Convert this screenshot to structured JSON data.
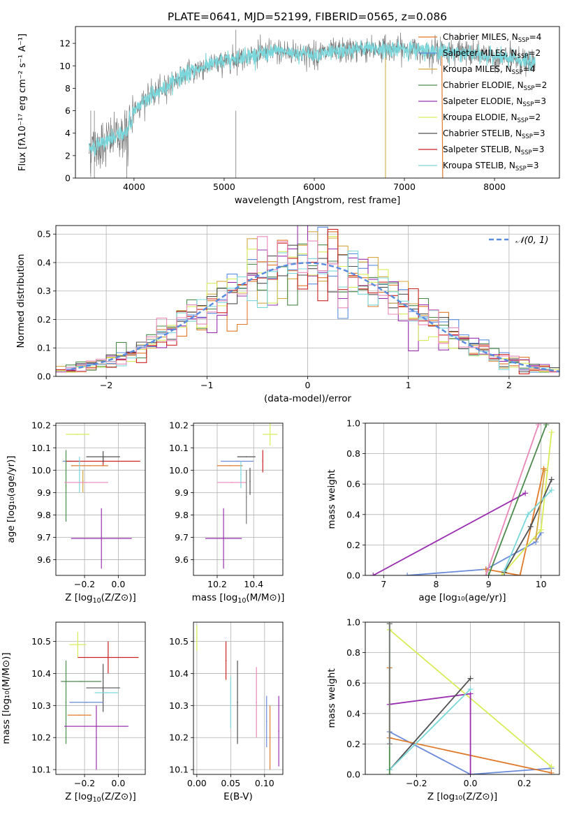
{
  "figure_title": "PLATE=0641, MJD=52199, FIBERID=0565, z=0.086",
  "colors": {
    "c1": "#d4a840",
    "c2": "#4c8a4c",
    "c3": "#9a30b0",
    "c4": "#d8ec5a",
    "c5": "#505050",
    "c6": "#cc2222",
    "c7": "#7ad8dc",
    "c8": "#e07a2a",
    "c9": "#6a8ad8",
    "c10": "#e888b8",
    "c11": "#777777",
    "c12": "#5a8de0"
  },
  "chart_data": [
    {
      "id": "spectrum",
      "type": "line",
      "xlabel": "wavelength [Angstrom, rest frame]",
      "ylabel": "Flux [fλ10⁻¹⁷ erg cm⁻² s⁻¹ A⁻¹]",
      "xlim": [
        3350,
        8720
      ],
      "ylim": [
        0,
        13.5
      ],
      "xticks": [
        4000,
        5000,
        6000,
        7000,
        8000
      ],
      "yticks": [
        0,
        2,
        4,
        6,
        8,
        10,
        12
      ],
      "legend_position": "top-right",
      "legend": [
        {
          "base": "Chabrier MILES, N",
          "sub": "SSP",
          "tail": "=4",
          "color": "c8"
        },
        {
          "base": "Salpeter MILES, N",
          "sub": "SSP",
          "tail": "=2",
          "color": "c12"
        },
        {
          "base": "Kroupa MILES, N",
          "sub": "SSP",
          "tail": "=4",
          "color": "c1"
        },
        {
          "base": "Chabrier ELODIE, N",
          "sub": "SSP",
          "tail": "=2",
          "color": "c2"
        },
        {
          "base": "Salpeter ELODIE, N",
          "sub": "SSP",
          "tail": "=3",
          "color": "c3"
        },
        {
          "base": "Kroupa ELODIE, N",
          "sub": "SSP",
          "tail": "=2",
          "color": "c4"
        },
        {
          "base": "Chabrier STELIB, N",
          "sub": "SSP",
          "tail": "=3",
          "color": "c5"
        },
        {
          "base": "Salpeter STELIB, N",
          "sub": "SSP",
          "tail": "=3",
          "color": "c6"
        },
        {
          "base": "Kroupa STELIB, N",
          "sub": "SSP",
          "tail": "=3",
          "color": "c7"
        }
      ],
      "data_color": "c11",
      "model_color": "c7",
      "data_x_range": [
        3500,
        8450
      ],
      "continuum": [
        [
          3500,
          2.6
        ],
        [
          3700,
          3.3
        ],
        [
          3900,
          4.0
        ],
        [
          3950,
          5.7
        ],
        [
          4150,
          7.2
        ],
        [
          4300,
          7.8
        ],
        [
          4500,
          9.0
        ],
        [
          4800,
          10.0
        ],
        [
          5200,
          10.8
        ],
        [
          5600,
          11.3
        ],
        [
          6000,
          11.0
        ],
        [
          6500,
          11.5
        ],
        [
          7000,
          11.5
        ],
        [
          7400,
          11.3
        ],
        [
          7800,
          11.0
        ],
        [
          8200,
          10.6
        ],
        [
          8450,
          10.2
        ]
      ],
      "spikes_down": [
        [
          3520,
          0.1
        ],
        [
          3560,
          0.0
        ],
        [
          3920,
          0.0
        ],
        [
          5130,
          0.0
        ],
        [
          6790,
          0.0
        ]
      ],
      "spikes_up": [
        [
          5130,
          13.2
        ],
        [
          6790,
          12.8
        ],
        [
          7400,
          12.6
        ],
        [
          7500,
          12.1
        ]
      ]
    },
    {
      "id": "residual_hist",
      "type": "histogram",
      "xlabel": "(data-model)/error",
      "ylabel": "Normed distribution",
      "xlim": [
        -2.5,
        2.5
      ],
      "ylim": [
        0,
        0.53
      ],
      "xticks": [
        -2,
        -1,
        0,
        1,
        2
      ],
      "yticks": [
        0,
        0.1,
        0.2,
        0.3,
        0.4,
        0.5
      ],
      "grid": true,
      "bin_width": 0.1,
      "gaussian_label": "𝒩(0, 1)",
      "gaussian_color": "c12",
      "legend_position": "top-right",
      "series_colors": [
        "c8",
        "c12",
        "c1",
        "c2",
        "c3",
        "c4",
        "c5",
        "c6",
        "c7",
        "c10"
      ]
    },
    {
      "id": "age_vs_Z",
      "type": "errorbar",
      "xlabel_main": "Z [log",
      "xlabel_sub": "10",
      "xlabel_tail": "(Z/Z⊙)]",
      "ylabel": "age  [log₁₀(age/yr)]",
      "xlim": [
        -0.37,
        0.16
      ],
      "ylim": [
        9.53,
        10.21
      ],
      "xticks": [
        -0.2,
        0.0
      ],
      "yticks": [
        9.6,
        9.7,
        9.8,
        9.9,
        10.0,
        10.1,
        10.2
      ],
      "grid": true,
      "points": [
        {
          "x": -0.1,
          "y": 9.695,
          "xerr": 0.18,
          "yerr": 0.135,
          "color": "c3"
        },
        {
          "x": -0.24,
          "y": 10.16,
          "xerr": 0.07,
          "yerr": 0.0,
          "color": "c4"
        },
        {
          "x": -0.28,
          "y": 10.04,
          "xerr": 0.05,
          "yerr": 0.0,
          "color": "c9"
        },
        {
          "x": -0.09,
          "y": 10.04,
          "xerr": 0.22,
          "yerr": 0.02,
          "color": "c6"
        },
        {
          "x": -0.17,
          "y": 10.02,
          "xerr": 0.11,
          "yerr": 0.0,
          "color": "c8"
        },
        {
          "x": -0.09,
          "y": 10.06,
          "xerr": 0.1,
          "yerr": 0.025,
          "color": "c5"
        },
        {
          "x": -0.31,
          "y": 9.93,
          "xerr": 0.0,
          "yerr": 0.16,
          "color": "c2"
        },
        {
          "x": -0.23,
          "y": 9.98,
          "xerr": 0.0,
          "yerr": 0.08,
          "color": "c7"
        },
        {
          "x": -0.21,
          "y": 9.95,
          "xerr": 0.0,
          "yerr": 0.05,
          "color": "c1"
        },
        {
          "x": -0.19,
          "y": 9.945,
          "xerr": 0.13,
          "yerr": 0.0,
          "color": "c10"
        }
      ]
    },
    {
      "id": "age_vs_mass",
      "type": "errorbar",
      "xlabel_main": "mass [log",
      "xlabel_sub": "10",
      "xlabel_tail": "(M/M⊙)]",
      "ylabel": "",
      "xlim": [
        10.07,
        10.56
      ],
      "ylim": [
        9.53,
        10.21
      ],
      "xticks": [
        10.2,
        10.4
      ],
      "yticks": [
        9.6,
        9.7,
        9.8,
        9.9,
        10.0,
        10.1,
        10.2
      ],
      "grid": true,
      "points": [
        {
          "x": 10.235,
          "y": 9.695,
          "xerr": 0.1,
          "yerr": 0.135,
          "color": "c3"
        },
        {
          "x": 10.49,
          "y": 10.16,
          "xerr": 0.04,
          "yerr": 0.05,
          "color": "c4"
        },
        {
          "x": 10.31,
          "y": 10.04,
          "xerr": 0.09,
          "yerr": 0.0,
          "color": "c9"
        },
        {
          "x": 10.45,
          "y": 10.04,
          "xerr": 0.0,
          "yerr": 0.05,
          "color": "c6"
        },
        {
          "x": 10.27,
          "y": 10.02,
          "xerr": 0.07,
          "yerr": 0.0,
          "color": "c8"
        },
        {
          "x": 10.36,
          "y": 10.06,
          "xerr": 0.05,
          "yerr": 0.0,
          "color": "c5"
        },
        {
          "x": 10.38,
          "y": 9.95,
          "xerr": 0.0,
          "yerr": 0.06,
          "color": "c5"
        },
        {
          "x": 10.33,
          "y": 9.98,
          "xerr": 0.0,
          "yerr": 0.06,
          "color": "c7"
        },
        {
          "x": 10.28,
          "y": 9.945,
          "xerr": 0.08,
          "yerr": 0.0,
          "color": "c10"
        },
        {
          "x": 10.36,
          "y": 9.88,
          "xerr": 0.0,
          "yerr": 0.12,
          "color": "c11"
        }
      ]
    },
    {
      "id": "weight_vs_age",
      "type": "line",
      "xlabel": "age  [log₁₀(age/yr)]",
      "ylabel": "mass weight",
      "xlim": [
        6.65,
        10.35
      ],
      "ylim": [
        0,
        1.0
      ],
      "xticks": [
        7,
        8,
        9,
        10
      ],
      "yticks": [
        0.0,
        0.2,
        0.4,
        0.6,
        0.8,
        1.0
      ],
      "grid": true,
      "series": [
        {
          "color": "c9",
          "points": [
            [
              7.45,
              0.0
            ],
            [
              8.95,
              0.04
            ],
            [
              9.9,
              0.22
            ],
            [
              10.0,
              0.28
            ]
          ]
        },
        {
          "color": "c8",
          "points": [
            [
              8.95,
              0.04
            ],
            [
              9.6,
              0.0
            ],
            [
              10.05,
              0.7
            ]
          ]
        },
        {
          "color": "c10",
          "points": [
            [
              8.95,
              0.0
            ],
            [
              9.95,
              0.99
            ]
          ]
        },
        {
          "color": "c3",
          "points": [
            [
              6.8,
              0.0
            ],
            [
              9.7,
              0.54
            ]
          ]
        },
        {
          "color": "c2",
          "points": [
            [
              9.0,
              0.0
            ],
            [
              10.1,
              0.99
            ]
          ]
        },
        {
          "color": "c4",
          "points": [
            [
              9.25,
              0.0
            ],
            [
              10.0,
              0.3
            ],
            [
              10.2,
              0.94
            ]
          ]
        },
        {
          "color": "c5",
          "points": [
            [
              9.3,
              0.02
            ],
            [
              9.8,
              0.32
            ],
            [
              10.2,
              0.63
            ]
          ]
        },
        {
          "color": "c7",
          "points": [
            [
              9.3,
              0.03
            ],
            [
              9.75,
              0.4
            ],
            [
              10.2,
              0.56
            ]
          ]
        },
        {
          "color": "c1",
          "points": [
            [
              9.9,
              0.24
            ],
            [
              10.07,
              0.69
            ]
          ]
        }
      ]
    },
    {
      "id": "mass_vs_Z",
      "type": "errorbar",
      "xlabel_main": "Z [log",
      "xlabel_sub": "10",
      "xlabel_tail": "(Z/Z⊙)]",
      "ylabel": "mass [log₁₀(M/M⊙)]",
      "xlim": [
        -0.37,
        0.16
      ],
      "ylim": [
        10.085,
        10.56
      ],
      "xticks": [
        -0.2,
        0.0
      ],
      "yticks": [
        10.1,
        10.2,
        10.3,
        10.4,
        10.5
      ],
      "grid": true,
      "points": [
        {
          "x": -0.24,
          "y": 10.49,
          "xerr": 0.05,
          "yerr": 0.04,
          "color": "c4"
        },
        {
          "x": -0.06,
          "y": 10.45,
          "xerr": 0.18,
          "yerr": 0.05,
          "color": "c6"
        },
        {
          "x": -0.09,
          "y": 10.355,
          "xerr": 0.1,
          "yerr": 0.075,
          "color": "c5"
        },
        {
          "x": -0.22,
          "y": 10.375,
          "xerr": 0.12,
          "yerr": 0.0,
          "color": "c2"
        },
        {
          "x": -0.07,
          "y": 10.34,
          "xerr": 0.07,
          "yerr": 0.0,
          "color": "c7"
        },
        {
          "x": -0.31,
          "y": 10.31,
          "xerr": 0.0,
          "yerr": 0.13,
          "color": "c2"
        },
        {
          "x": -0.19,
          "y": 10.31,
          "xerr": 0.1,
          "yerr": 0.0,
          "color": "c9"
        },
        {
          "x": -0.23,
          "y": 10.27,
          "xerr": 0.07,
          "yerr": 0.0,
          "color": "c8"
        },
        {
          "x": -0.13,
          "y": 10.235,
          "xerr": 0.19,
          "yerr": 0.0,
          "color": "c3"
        },
        {
          "x": -0.13,
          "y": 10.2,
          "xerr": 0.0,
          "yerr": 0.1,
          "color": "c3"
        }
      ]
    },
    {
      "id": "mass_vs_ebv",
      "type": "errorbar",
      "xlabel": "E(B-V)",
      "ylabel": "",
      "xlim": [
        -0.005,
        0.127
      ],
      "ylim": [
        10.085,
        10.56
      ],
      "xticks": [
        0.0,
        0.05,
        0.1
      ],
      "yticks": [
        10.1,
        10.2,
        10.3,
        10.4,
        10.5
      ],
      "grid": true,
      "points": [
        {
          "x": 0.0,
          "y": 10.51,
          "xerr": 0.0,
          "yerr": 0.04,
          "color": "c4"
        },
        {
          "x": 0.043,
          "y": 10.44,
          "xerr": 0.0,
          "yerr": 0.06,
          "color": "c6"
        },
        {
          "x": 0.05,
          "y": 10.31,
          "xerr": 0.0,
          "yerr": 0.08,
          "color": "c7"
        },
        {
          "x": 0.06,
          "y": 10.31,
          "xerr": 0.0,
          "yerr": 0.13,
          "color": "c5"
        },
        {
          "x": 0.088,
          "y": 10.31,
          "xerr": 0.0,
          "yerr": 0.11,
          "color": "c10"
        },
        {
          "x": 0.103,
          "y": 10.25,
          "xerr": 0.0,
          "yerr": 0.08,
          "color": "c9"
        },
        {
          "x": 0.108,
          "y": 10.2,
          "xerr": 0.0,
          "yerr": 0.1,
          "color": "c8"
        },
        {
          "x": 0.121,
          "y": 10.22,
          "xerr": 0.0,
          "yerr": 0.11,
          "color": "c3"
        }
      ]
    },
    {
      "id": "weight_vs_Z",
      "type": "line",
      "xlabel": "Z [log₁₀(Z/Z⊙)]",
      "ylabel": "mass weight",
      "xlim": [
        -0.39,
        0.33
      ],
      "ylim": [
        0,
        1.0
      ],
      "xticks": [
        -0.2,
        0.0,
        0.2
      ],
      "yticks": [
        0.0,
        0.2,
        0.4,
        0.6,
        0.8,
        1.0
      ],
      "grid": true,
      "series": [
        {
          "color": "c9",
          "points": [
            [
              -0.3,
              0.28
            ],
            [
              0.0,
              0.0
            ],
            [
              0.3,
              0.04
            ]
          ]
        },
        {
          "color": "c8",
          "points": [
            [
              -0.3,
              0.7
            ],
            [
              -0.3,
              0.24
            ],
            [
              0.3,
              0.01
            ]
          ]
        },
        {
          "color": "c4",
          "points": [
            [
              -0.3,
              0.95
            ],
            [
              0.3,
              0.05
            ]
          ]
        },
        {
          "color": "c3",
          "points": [
            [
              -0.3,
              0.46
            ],
            [
              0.0,
              0.53
            ],
            [
              0.0,
              0.0
            ]
          ]
        },
        {
          "color": "c5",
          "points": [
            [
              -0.3,
              0.03
            ],
            [
              0.0,
              0.63
            ]
          ]
        },
        {
          "color": "c7",
          "points": [
            [
              -0.3,
              0.03
            ],
            [
              0.0,
              0.56
            ]
          ]
        },
        {
          "color": "c2",
          "points": [
            [
              -0.3,
              0.99
            ],
            [
              -0.3,
              0.0
            ]
          ]
        },
        {
          "color": "c11",
          "points": [
            [
              -0.3,
              0.99
            ],
            [
              -0.3,
              0.2
            ]
          ]
        }
      ]
    }
  ]
}
